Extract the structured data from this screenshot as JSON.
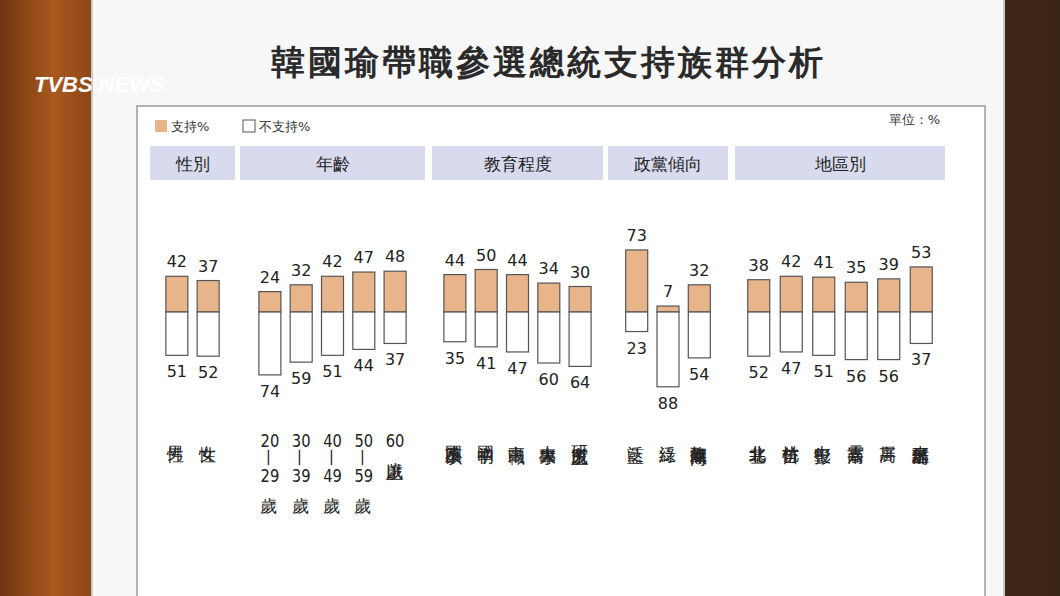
{
  "chart_data": {
    "type": "bar",
    "title": "韓國瑜帶職參選總統支持族群分析",
    "logo": "TVBS NEWS",
    "annotations": [
      "單位：%"
    ],
    "stacked": true,
    "data_labels": true,
    "legend": "top-left",
    "tick_labels": "x",
    "groups": [
      {
        "name": "性別",
        "categories": [
          "男性",
          "女性"
        ]
      },
      {
        "name": "年齡",
        "categories": [
          "20—29歲",
          "30—39歲",
          "40—49歲",
          "50—59歲",
          "60歲以上"
        ]
      },
      {
        "name": "教育程度",
        "categories": [
          "國小及以下",
          "國初中",
          "高中職",
          "大專大學",
          "研究所以上"
        ]
      },
      {
        "name": "政黨傾向",
        "categories": [
          "泛藍",
          "泛綠",
          "無政黨傾向"
        ]
      },
      {
        "name": "地區別",
        "categories": [
          "北北基",
          "桃竹苗",
          "中彰投",
          "雲嘉南",
          "高屏",
          "東部離島"
        ]
      }
    ],
    "series": [
      {
        "name": "支持%",
        "color": "#e8b58b",
        "values": [
          42,
          37,
          24,
          32,
          42,
          47,
          48,
          44,
          50,
          44,
          34,
          30,
          73,
          7,
          32,
          38,
          42,
          41,
          35,
          39,
          53
        ]
      },
      {
        "name": "不支持%",
        "color": "#ffffff",
        "values": [
          51,
          52,
          74,
          59,
          51,
          44,
          37,
          35,
          41,
          47,
          60,
          64,
          23,
          88,
          54,
          52,
          47,
          51,
          56,
          56,
          37
        ]
      }
    ]
  }
}
